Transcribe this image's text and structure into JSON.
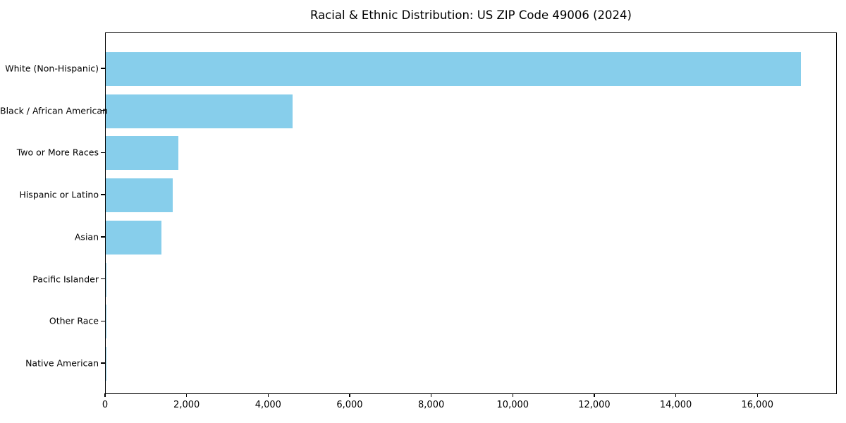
{
  "chart_data": {
    "type": "bar",
    "orientation": "horizontal",
    "title": "Racial & Ethnic Distribution: US ZIP Code 49006 (2024)",
    "categories": [
      "White (Non-Hispanic)",
      "Black / African American",
      "Two or More Races",
      "Hispanic or Latino",
      "Asian",
      "Pacific Islander",
      "Other Race",
      "Native American"
    ],
    "values": [
      17050,
      4590,
      1780,
      1640,
      1360,
      25,
      15,
      10
    ],
    "xlabel": "",
    "ylabel": "",
    "xlim": [
      0,
      17915
    ],
    "xticks": {
      "values": [
        0,
        2000,
        4000,
        6000,
        8000,
        10000,
        12000,
        14000,
        16000
      ],
      "labels": [
        "0",
        "2,000",
        "4,000",
        "6,000",
        "8,000",
        "10,000",
        "12,000",
        "14,000",
        "16,000"
      ]
    },
    "bar_color": "#87CEEB",
    "frame_color": "#000000",
    "background_color": "#ffffff",
    "grid": false,
    "legend": null
  }
}
